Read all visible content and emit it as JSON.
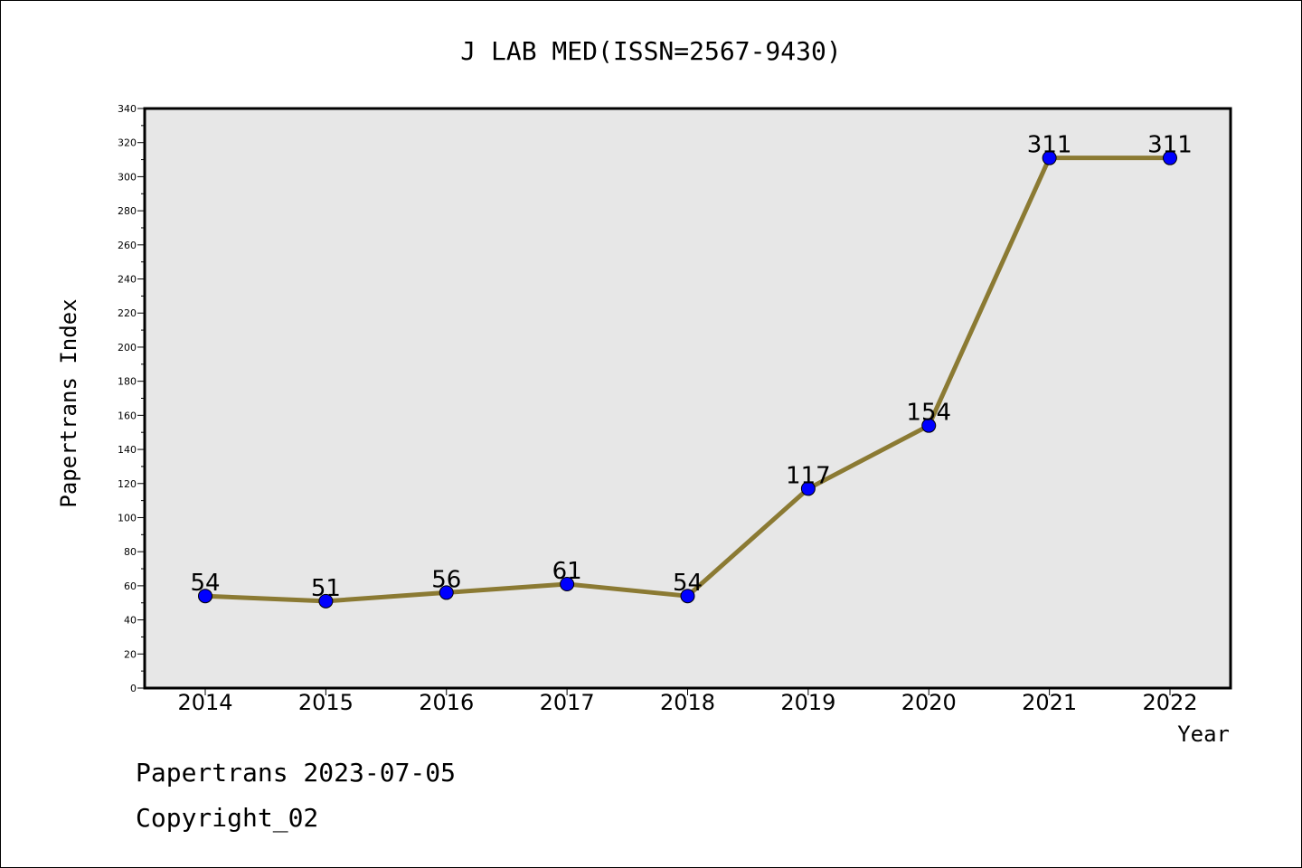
{
  "chart_data": {
    "type": "line",
    "title": "J LAB MED(ISSN=2567-9430)",
    "xlabel": "Year",
    "ylabel": "Papertrans Index",
    "categories": [
      "2014",
      "2015",
      "2016",
      "2017",
      "2018",
      "2019",
      "2020",
      "2021",
      "2022"
    ],
    "series": [
      {
        "values": [
          54,
          51,
          56,
          61,
          54,
          117,
          154,
          311,
          311
        ]
      }
    ],
    "ylim": [
      0,
      340
    ],
    "y_ticks": [
      0,
      20,
      40,
      60,
      80,
      100,
      120,
      140,
      160,
      180,
      200,
      220,
      240,
      260,
      280,
      300,
      320,
      340
    ],
    "data_labels": true,
    "grid": false,
    "colors": {
      "line": "#8b7a33",
      "marker": "#0000ff",
      "plot_background": "#e7e7e7"
    }
  },
  "footer": {
    "source": "Papertrans 2023-07-05",
    "copyright": "Copyright_02"
  }
}
